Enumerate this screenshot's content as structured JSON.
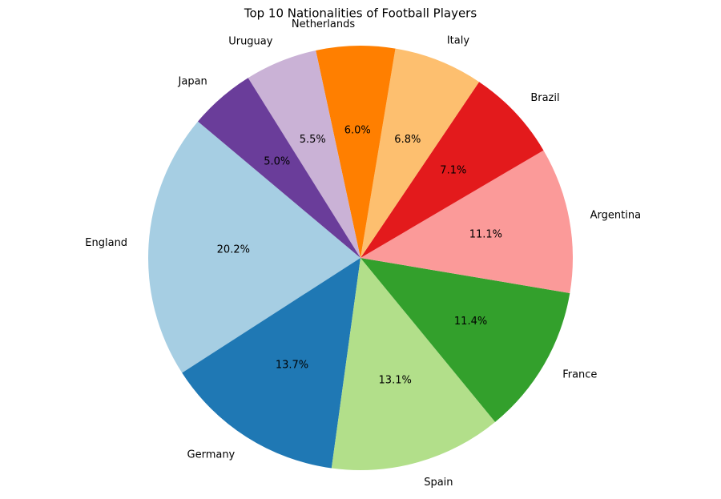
{
  "chart_data": {
    "type": "pie",
    "title": "Top 10 Nationalities of Football Players",
    "categories": [
      "England",
      "Germany",
      "Spain",
      "France",
      "Argentina",
      "Brazil",
      "Italy",
      "Netherlands",
      "Uruguay",
      "Japan"
    ],
    "values": [
      20.2,
      13.7,
      13.1,
      11.4,
      11.1,
      7.1,
      6.8,
      6.0,
      5.5,
      5.0
    ],
    "value_labels": [
      "20.2%",
      "13.7%",
      "13.1%",
      "11.4%",
      "11.1%",
      "7.1%",
      "6.8%",
      "6.0%",
      "5.5%",
      "5.0%"
    ],
    "colors": [
      "#a6cee3",
      "#1f78b4",
      "#b2df8a",
      "#33a02c",
      "#fb9a99",
      "#e31a1c",
      "#fdbf6f",
      "#ff7f00",
      "#cab2d6",
      "#6a3d9a"
    ],
    "start_angle": 140
  }
}
